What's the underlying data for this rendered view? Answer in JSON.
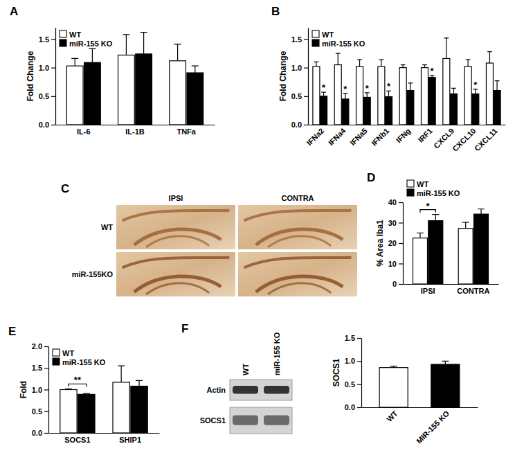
{
  "chart_data": [
    {
      "type": "bar",
      "panel": "A",
      "categories": [
        "IL-6",
        "IL-1B",
        "TNFa"
      ],
      "series": [
        {
          "name": "WT",
          "color": "#ffffff",
          "values": [
            1.03,
            1.22,
            1.12
          ],
          "errors": [
            0.13,
            0.36,
            0.29
          ]
        },
        {
          "name": "miR-155 KO",
          "color": "#000000",
          "values": [
            1.09,
            1.24,
            0.91
          ],
          "errors": [
            0.24,
            0.38,
            0.12
          ]
        }
      ],
      "y_label": "Fold Change",
      "ylim": [
        0,
        1.7
      ],
      "yticks": [
        {
          "value": 0,
          "label": "0.0"
        },
        {
          "value": 0.5,
          "label": "0.5"
        },
        {
          "value": 1,
          "label": "1.0"
        },
        {
          "value": 1.5,
          "label": "1.5"
        }
      ],
      "legend": "top-left"
    },
    {
      "type": "bar",
      "panel": "B",
      "categories": [
        "IFNa2",
        "IFNa4",
        "IFNa5",
        "IFNb1",
        "IFNg",
        "IRF1",
        "CXCL9",
        "CXCL10",
        "CXCL11"
      ],
      "series": [
        {
          "name": "WT",
          "color": "#ffffff",
          "values": [
            1.02,
            1.05,
            1.02,
            1.02,
            1.0,
            1.0,
            1.16,
            1.02,
            1.08
          ],
          "errors": [
            0.08,
            0.2,
            0.12,
            0.12,
            0.05,
            0.05,
            0.36,
            0.12,
            0.2
          ]
        },
        {
          "name": "miR-155 KO",
          "color": "#000000",
          "values": [
            0.5,
            0.45,
            0.48,
            0.49,
            0.6,
            0.83,
            0.54,
            0.54,
            0.6
          ],
          "errors": [
            0.07,
            0.1,
            0.08,
            0.1,
            0.13,
            0.03,
            0.1,
            0.08,
            0.17
          ],
          "significance": [
            "*",
            "*",
            "*",
            "*",
            null,
            "*",
            null,
            "*",
            null
          ]
        }
      ],
      "y_label": "Fold Change",
      "ylim": [
        0,
        1.7
      ],
      "yticks": [
        {
          "value": 0,
          "label": "0.0"
        },
        {
          "value": 0.5,
          "label": "0.5"
        },
        {
          "value": 1,
          "label": "1.0"
        },
        {
          "value": 1.5,
          "label": "1.5"
        }
      ],
      "legend": "top-left"
    },
    {
      "type": "bar",
      "panel": "D",
      "categories": [
        "IPSI",
        "CONTRA"
      ],
      "series": [
        {
          "name": "WT",
          "color": "#ffffff",
          "values": [
            22.5,
            27.2
          ],
          "errors": [
            2.5,
            3
          ]
        },
        {
          "name": "miR-155 KO",
          "color": "#000000",
          "values": [
            31,
            34.2
          ],
          "errors": [
            3,
            2.5
          ]
        }
      ],
      "y_label": "% Area Iba1",
      "ylim": [
        0,
        40
      ],
      "yticks": [
        0,
        10,
        20,
        30,
        40
      ],
      "legend": "top",
      "comparisons": [
        {
          "category": 0,
          "text": "*"
        }
      ]
    },
    {
      "type": "bar",
      "panel": "E",
      "categories": [
        "SOCS1",
        "SHIP1"
      ],
      "series": [
        {
          "name": "WT",
          "color": "#ffffff",
          "values": [
            1.0,
            1.17
          ],
          "errors": [
            0.02,
            0.38
          ]
        },
        {
          "name": "miR-155 KO",
          "color": "#000000",
          "values": [
            0.89,
            1.08
          ],
          "errors": [
            0.02,
            0.13
          ]
        }
      ],
      "y_label": "Fold",
      "ylim": [
        0,
        2
      ],
      "yticks": [
        {
          "value": 0,
          "label": "0.0"
        },
        {
          "value": 0.5,
          "label": "0.5"
        },
        {
          "value": 1,
          "label": "1.0"
        },
        {
          "value": 1.5,
          "label": "1.5"
        },
        {
          "value": 2,
          "label": "2.0"
        }
      ],
      "legend": "top-left",
      "comparisons": [
        {
          "category": 0,
          "text": "**"
        }
      ]
    },
    {
      "type": "bar",
      "categories": [
        "WT",
        "MIR-155 KO"
      ],
      "values": [
        0.86,
        0.93
      ],
      "errors": [
        0.03,
        0.07
      ],
      "colors": [
        "#ffffff",
        "#000000"
      ],
      "y_label": "SOCS1",
      "ylim": [
        0,
        1.5
      ],
      "yticks": [
        {
          "value": 0,
          "label": "0.0"
        },
        {
          "value": 0.5,
          "label": "0.5"
        },
        {
          "value": 1,
          "label": "1.0"
        },
        {
          "value": 1.5,
          "label": "1.5"
        }
      ]
    }
  ],
  "micrographs": {
    "panel": "C",
    "columns": [
      "IPSI",
      "CONTRA"
    ],
    "rows": [
      "WT",
      "miR-155KO"
    ]
  },
  "blot": {
    "panel": "F",
    "lanes": [
      "WT",
      "miR-155 KO"
    ],
    "rows": [
      "Actin",
      "SOCS1"
    ]
  }
}
